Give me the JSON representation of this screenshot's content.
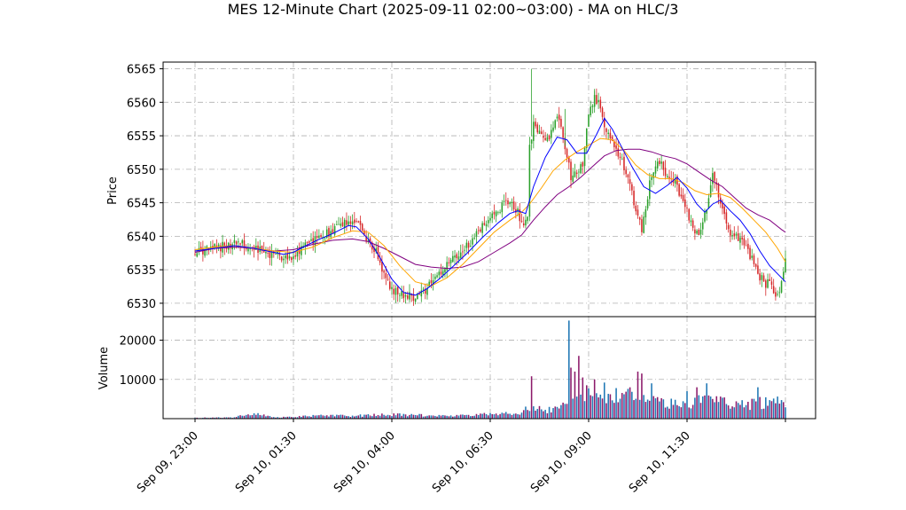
{
  "title": "MES 12-Minute Chart (2025-09-11 02:00~03:00) - MA on HLC/3",
  "colors": {
    "up": "#2ca02c",
    "down": "#d62728",
    "ma_fast": "#0000ff",
    "ma_mid": "#ffa500",
    "ma_slow": "#800080",
    "volume_a": "#1f77b4",
    "volume_b": "#8c1a6a",
    "grid": "#b0b0b0"
  },
  "chart_data": {
    "type": "candlestick",
    "x_tick_labels": [
      "Sep 09, 23:00",
      "Sep 10, 01:30",
      "Sep 10, 04:00",
      "Sep 10, 06:30",
      "Sep 10, 09:00",
      "Sep 10, 11:30"
    ],
    "price_panel": {
      "ylabel": "Price",
      "ylim": [
        6528,
        6566
      ],
      "y_ticks": [
        6530,
        6535,
        6540,
        6545,
        6550,
        6555,
        6560,
        6565
      ],
      "grid": true
    },
    "volume_panel": {
      "ylabel": "Volume",
      "ylim": [
        0,
        26000
      ],
      "y_ticks": [
        10000,
        20000
      ],
      "grid": true
    },
    "close_path": [
      [
        0,
        6537.6
      ],
      [
        8,
        6538.0
      ],
      [
        15,
        6538.6
      ],
      [
        22,
        6539.0
      ],
      [
        28,
        6538.2
      ],
      [
        33,
        6537.8
      ],
      [
        38,
        6537.4
      ],
      [
        44,
        6537.0
      ],
      [
        48,
        6536.8
      ],
      [
        52,
        6537.4
      ],
      [
        56,
        6538.6
      ],
      [
        62,
        6539.6
      ],
      [
        70,
        6540.8
      ],
      [
        76,
        6542.0
      ],
      [
        80,
        6542.6
      ],
      [
        84,
        6541.4
      ],
      [
        88,
        6539.5
      ],
      [
        92,
        6537.5
      ],
      [
        96,
        6534.5
      ],
      [
        100,
        6532.0
      ],
      [
        104,
        6531.5
      ],
      [
        108,
        6531.2
      ],
      [
        112,
        6530.8
      ],
      [
        116,
        6531.6
      ],
      [
        120,
        6533.0
      ],
      [
        126,
        6534.8
      ],
      [
        132,
        6536.8
      ],
      [
        138,
        6538.5
      ],
      [
        144,
        6540.5
      ],
      [
        150,
        6542.8
      ],
      [
        156,
        6544.5
      ],
      [
        160,
        6545.2
      ],
      [
        164,
        6543.5
      ],
      [
        167,
        6541.2
      ],
      [
        169,
        6543.5
      ],
      [
        170,
        6553.0
      ],
      [
        172,
        6556.8
      ],
      [
        175,
        6555.2
      ],
      [
        178,
        6554.0
      ],
      [
        182,
        6556.0
      ],
      [
        185,
        6558.0
      ],
      [
        188,
        6553.5
      ],
      [
        191,
        6549.0
      ],
      [
        194,
        6550.0
      ],
      [
        197,
        6551.0
      ],
      [
        200,
        6558.0
      ],
      [
        203,
        6561.0
      ],
      [
        206,
        6559.0
      ],
      [
        209,
        6555.5
      ],
      [
        212,
        6554.5
      ],
      [
        215,
        6552.5
      ],
      [
        218,
        6550.5
      ],
      [
        221,
        6547.5
      ],
      [
        224,
        6544.0
      ],
      [
        227,
        6541.0
      ],
      [
        229,
        6544.5
      ],
      [
        232,
        6549.5
      ],
      [
        235,
        6551.5
      ],
      [
        238,
        6550.0
      ],
      [
        241,
        6548.5
      ],
      [
        244,
        6548.0
      ],
      [
        247,
        6546.0
      ],
      [
        250,
        6543.5
      ],
      [
        253,
        6541.5
      ],
      [
        256,
        6539.5
      ],
      [
        258,
        6542.0
      ],
      [
        261,
        6545.5
      ],
      [
        263,
        6549.5
      ],
      [
        266,
        6546.5
      ],
      [
        269,
        6543.0
      ],
      [
        272,
        6540.5
      ],
      [
        275,
        6540.0
      ],
      [
        278,
        6539.0
      ],
      [
        281,
        6537.5
      ],
      [
        284,
        6536.5
      ],
      [
        287,
        6534.0
      ],
      [
        290,
        6533.0
      ],
      [
        292,
        6533.5
      ],
      [
        294,
        6531.5
      ],
      [
        297,
        6532.0
      ],
      [
        300,
        6536.5
      ]
    ],
    "ma_fast": [
      [
        0,
        6537.8
      ],
      [
        10,
        6538.2
      ],
      [
        20,
        6538.6
      ],
      [
        30,
        6538.2
      ],
      [
        40,
        6537.6
      ],
      [
        45,
        6537.3
      ],
      [
        50,
        6537.6
      ],
      [
        55,
        6538.4
      ],
      [
        62,
        6539.4
      ],
      [
        70,
        6540.4
      ],
      [
        78,
        6541.6
      ],
      [
        82,
        6541.4
      ],
      [
        88,
        6539.6
      ],
      [
        94,
        6536.8
      ],
      [
        100,
        6533.6
      ],
      [
        106,
        6531.6
      ],
      [
        112,
        6531.2
      ],
      [
        118,
        6532.2
      ],
      [
        124,
        6533.6
      ],
      [
        130,
        6535.2
      ],
      [
        138,
        6537.4
      ],
      [
        146,
        6539.8
      ],
      [
        154,
        6542.0
      ],
      [
        160,
        6543.4
      ],
      [
        164,
        6543.8
      ],
      [
        168,
        6543.4
      ],
      [
        172,
        6547.4
      ],
      [
        178,
        6551.8
      ],
      [
        184,
        6554.8
      ],
      [
        189,
        6554.4
      ],
      [
        194,
        6552.4
      ],
      [
        199,
        6552.4
      ],
      [
        204,
        6555.2
      ],
      [
        208,
        6557.6
      ],
      [
        212,
        6556.0
      ],
      [
        217,
        6553.2
      ],
      [
        222,
        6550.4
      ],
      [
        228,
        6547.4
      ],
      [
        234,
        6546.4
      ],
      [
        240,
        6547.6
      ],
      [
        245,
        6548.8
      ],
      [
        250,
        6547.2
      ],
      [
        255,
        6544.8
      ],
      [
        259,
        6543.6
      ],
      [
        263,
        6544.8
      ],
      [
        267,
        6545.4
      ],
      [
        272,
        6543.8
      ],
      [
        277,
        6542.4
      ],
      [
        282,
        6540.4
      ],
      [
        287,
        6537.8
      ],
      [
        292,
        6535.6
      ],
      [
        296,
        6534.4
      ],
      [
        300,
        6533.2
      ]
    ],
    "ma_mid": [
      [
        0,
        6538.0
      ],
      [
        10,
        6538.4
      ],
      [
        20,
        6538.6
      ],
      [
        30,
        6538.2
      ],
      [
        40,
        6537.8
      ],
      [
        50,
        6537.6
      ],
      [
        60,
        6538.4
      ],
      [
        70,
        6539.8
      ],
      [
        80,
        6540.8
      ],
      [
        88,
        6540.6
      ],
      [
        96,
        6538.6
      ],
      [
        104,
        6535.6
      ],
      [
        112,
        6533.2
      ],
      [
        120,
        6532.6
      ],
      [
        128,
        6533.8
      ],
      [
        136,
        6535.8
      ],
      [
        144,
        6538.2
      ],
      [
        152,
        6540.6
      ],
      [
        160,
        6542.4
      ],
      [
        166,
        6543.6
      ],
      [
        170,
        6544.8
      ],
      [
        176,
        6547.2
      ],
      [
        182,
        6549.8
      ],
      [
        188,
        6551.4
      ],
      [
        194,
        6552.6
      ],
      [
        200,
        6553.6
      ],
      [
        206,
        6554.6
      ],
      [
        212,
        6554.4
      ],
      [
        218,
        6552.8
      ],
      [
        224,
        6550.6
      ],
      [
        230,
        6549.2
      ],
      [
        236,
        6548.6
      ],
      [
        242,
        6548.6
      ],
      [
        248,
        6548.0
      ],
      [
        254,
        6546.8
      ],
      [
        260,
        6546.2
      ],
      [
        266,
        6546.4
      ],
      [
        272,
        6545.8
      ],
      [
        278,
        6544.2
      ],
      [
        284,
        6542.4
      ],
      [
        290,
        6540.6
      ],
      [
        296,
        6538.2
      ],
      [
        300,
        6536.2
      ]
    ],
    "ma_slow": [
      [
        0,
        6537.6
      ],
      [
        10,
        6538.2
      ],
      [
        20,
        6538.4
      ],
      [
        30,
        6538.2
      ],
      [
        40,
        6537.8
      ],
      [
        50,
        6538.0
      ],
      [
        60,
        6538.8
      ],
      [
        70,
        6539.4
      ],
      [
        80,
        6539.6
      ],
      [
        88,
        6539.2
      ],
      [
        96,
        6538.2
      ],
      [
        104,
        6537.0
      ],
      [
        112,
        6535.8
      ],
      [
        120,
        6535.4
      ],
      [
        128,
        6535.2
      ],
      [
        136,
        6535.4
      ],
      [
        144,
        6536.2
      ],
      [
        152,
        6537.6
      ],
      [
        160,
        6539.0
      ],
      [
        166,
        6540.2
      ],
      [
        172,
        6542.4
      ],
      [
        178,
        6544.4
      ],
      [
        184,
        6546.2
      ],
      [
        190,
        6547.4
      ],
      [
        196,
        6548.8
      ],
      [
        202,
        6550.4
      ],
      [
        208,
        6552.0
      ],
      [
        214,
        6552.8
      ],
      [
        220,
        6553.0
      ],
      [
        226,
        6553.0
      ],
      [
        232,
        6552.6
      ],
      [
        238,
        6552.0
      ],
      [
        244,
        6551.6
      ],
      [
        250,
        6550.8
      ],
      [
        256,
        6549.6
      ],
      [
        262,
        6548.4
      ],
      [
        268,
        6547.4
      ],
      [
        274,
        6545.8
      ],
      [
        280,
        6544.2
      ],
      [
        286,
        6543.2
      ],
      [
        292,
        6542.4
      ],
      [
        298,
        6541.0
      ],
      [
        300,
        6540.6
      ]
    ],
    "volume_path": [
      [
        0,
        200
      ],
      [
        10,
        250
      ],
      [
        20,
        300
      ],
      [
        30,
        1500
      ],
      [
        40,
        300
      ],
      [
        50,
        500
      ],
      [
        60,
        700
      ],
      [
        70,
        800
      ],
      [
        80,
        700
      ],
      [
        90,
        900
      ],
      [
        100,
        1000
      ],
      [
        110,
        900
      ],
      [
        120,
        800
      ],
      [
        130,
        700
      ],
      [
        140,
        800
      ],
      [
        150,
        1200
      ],
      [
        160,
        1500
      ],
      [
        165,
        1200
      ],
      [
        170,
        3000
      ],
      [
        175,
        2500
      ],
      [
        180,
        2200
      ],
      [
        185,
        2800
      ],
      [
        190,
        5000
      ],
      [
        195,
        7000
      ],
      [
        200,
        6500
      ],
      [
        205,
        5500
      ],
      [
        210,
        5200
      ],
      [
        215,
        6000
      ],
      [
        220,
        6500
      ],
      [
        225,
        6000
      ],
      [
        230,
        5000
      ],
      [
        235,
        4000
      ],
      [
        240,
        3800
      ],
      [
        245,
        3500
      ],
      [
        250,
        3500
      ],
      [
        255,
        4500
      ],
      [
        260,
        5000
      ],
      [
        265,
        4800
      ],
      [
        270,
        4200
      ],
      [
        275,
        3800
      ],
      [
        280,
        3600
      ],
      [
        285,
        3800
      ],
      [
        290,
        4200
      ],
      [
        295,
        4000
      ],
      [
        300,
        4200
      ]
    ],
    "volume_spikes": [
      [
        171,
        10800
      ],
      [
        190,
        25000
      ],
      [
        191,
        13000
      ],
      [
        193,
        12000
      ],
      [
        195,
        16000
      ],
      [
        197,
        10500
      ],
      [
        203,
        10000
      ],
      [
        208,
        9200
      ],
      [
        225,
        12000
      ],
      [
        227,
        11500
      ],
      [
        232,
        9000
      ],
      [
        250,
        7000
      ],
      [
        255,
        8000
      ],
      [
        260,
        9000
      ],
      [
        286,
        8000
      ]
    ]
  }
}
